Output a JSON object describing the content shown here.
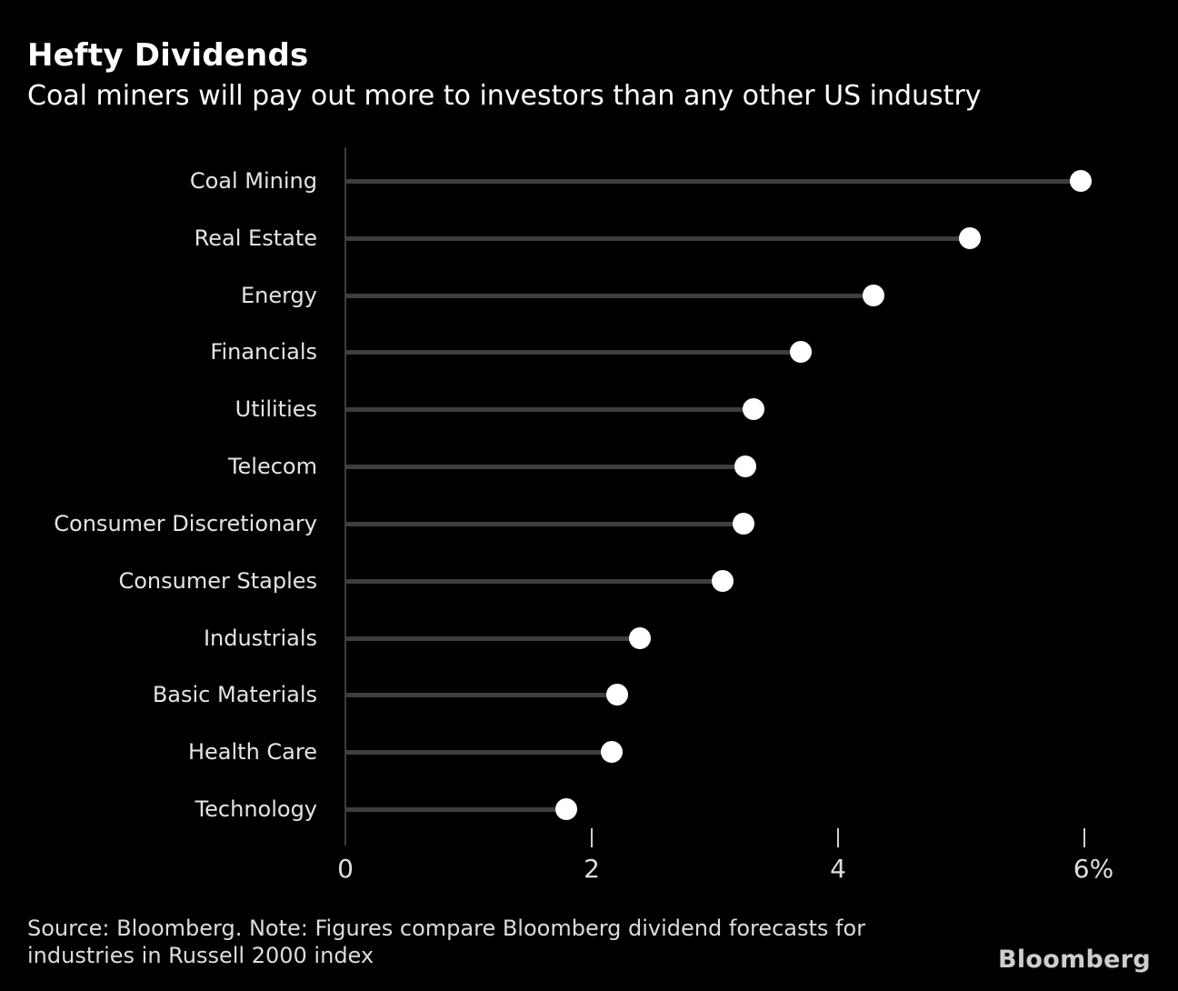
{
  "header": {
    "title": "Hefty Dividends",
    "subtitle": "Coal miners will pay out more to investors than any other US industry"
  },
  "chart_data": {
    "type": "lollipop",
    "orientation": "horizontal",
    "categories": [
      "Coal Mining",
      "Real Estate",
      "Energy",
      "Financials",
      "Utilities",
      "Telecom",
      "Consumer Discretionary",
      "Consumer Staples",
      "Industrials",
      "Basic Materials",
      "Health Care",
      "Technology"
    ],
    "values": [
      5.97,
      5.07,
      4.29,
      3.7,
      3.31,
      3.25,
      3.23,
      3.06,
      2.39,
      2.21,
      2.16,
      1.79
    ],
    "unit": "%",
    "xlim": [
      0,
      6
    ],
    "x_ticks": [
      {
        "value": 0,
        "label": "0",
        "mark": false
      },
      {
        "value": 2,
        "label": "2",
        "mark": true
      },
      {
        "value": 4,
        "label": "4",
        "mark": true
      },
      {
        "value": 6,
        "label": "6%",
        "mark": true
      }
    ],
    "grid": false,
    "legend": null,
    "value_labels_shown": false
  },
  "footer": {
    "source_line1": "Source: Bloomberg. Note: Figures compare Bloomberg dividend forecasts for",
    "source_line2": "industries in Russell 2000 index",
    "logo_text": "Bloomberg"
  },
  "colors": {
    "background": "#000000",
    "stem": "#3e3e3e",
    "axis": "#3e3e3e",
    "tick": "#d0d0d0",
    "dot": "#ffffff",
    "cat_label": "#e4e4e4",
    "tick_label": "#dedede",
    "title": "#ffffff",
    "source": "#dcdcdc",
    "logo": "#cecece"
  }
}
